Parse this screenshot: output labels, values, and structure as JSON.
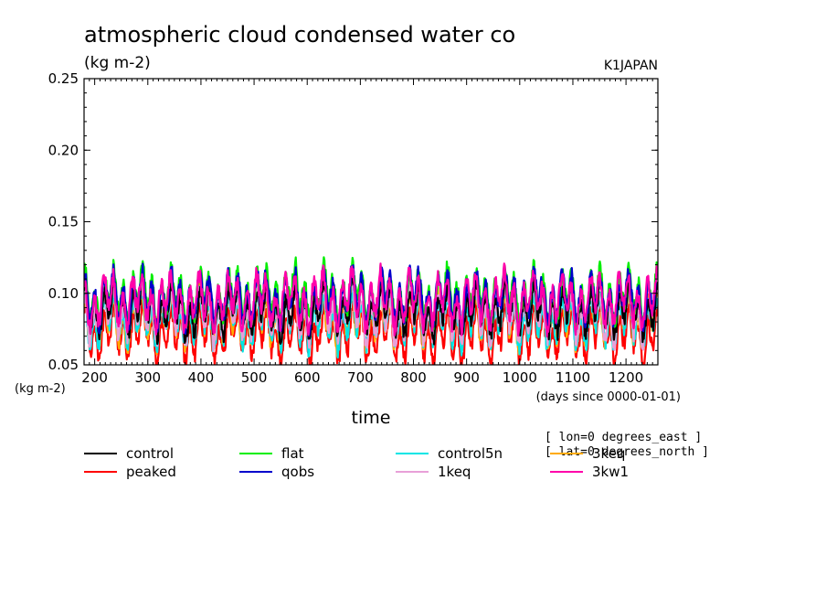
{
  "header": {
    "title": "atmospheric cloud condensed water co",
    "units": "(kg m-2)",
    "tag": "K1JAPAN"
  },
  "notes": [
    "[ lon=0 degrees_east ]",
    "[ lat=0 degrees_north ]"
  ],
  "chart_data": {
    "type": "line",
    "title": "atmospheric cloud condensed water co",
    "xlabel": "time",
    "x_units": "(days since 0000-01-01)",
    "ylabel": "(kg m-2)",
    "xlim": [
      180,
      1260
    ],
    "ylim": [
      0.05,
      0.25
    ],
    "xticks": [
      200,
      300,
      400,
      500,
      600,
      700,
      800,
      900,
      1000,
      1100,
      1200
    ],
    "xtick_labels": [
      "200",
      "300",
      "400",
      "500",
      "600",
      "700",
      "800",
      "900",
      "1000",
      "1100",
      "1200"
    ],
    "yticks": [
      0.05,
      0.1,
      0.15,
      0.2,
      0.25
    ],
    "ytick_labels": [
      "0.05",
      "0.10",
      "0.15",
      "0.20",
      "0.25"
    ],
    "grid": false,
    "legend_position": "bottom",
    "series": [
      {
        "name": "control",
        "color": "#000000",
        "x": [
          180,
          280,
          380,
          480,
          580,
          680,
          780,
          880,
          980,
          1080,
          1180,
          1260
        ],
        "y": [
          0.088,
          0.092,
          0.085,
          0.09,
          0.086,
          0.093,
          0.089,
          0.087,
          0.091,
          0.088,
          0.09,
          0.086
        ]
      },
      {
        "name": "peaked",
        "color": "#ff0000",
        "x": [
          180,
          280,
          380,
          480,
          580,
          680,
          780,
          880,
          980,
          1080,
          1180,
          1260
        ],
        "y": [
          0.072,
          0.074,
          0.07,
          0.073,
          0.069,
          0.072,
          0.071,
          0.07,
          0.073,
          0.07,
          0.072,
          0.071
        ]
      },
      {
        "name": "flat",
        "color": "#00ee00",
        "x": [
          180,
          280,
          380,
          480,
          580,
          680,
          780,
          880,
          980,
          1080,
          1180,
          1260
        ],
        "y": [
          0.098,
          0.1,
          0.097,
          0.099,
          0.101,
          0.1,
          0.098,
          0.099,
          0.1,
          0.097,
          0.099,
          0.1
        ]
      },
      {
        "name": "qobs",
        "color": "#0000cc",
        "x": [
          180,
          280,
          380,
          480,
          580,
          680,
          780,
          880,
          980,
          1080,
          1180,
          1260
        ],
        "y": [
          0.095,
          0.097,
          0.096,
          0.098,
          0.095,
          0.097,
          0.099,
          0.096,
          0.097,
          0.098,
          0.096,
          0.097
        ]
      },
      {
        "name": "control5n",
        "color": "#00e5e5",
        "x": [
          180,
          280,
          380,
          480,
          580,
          680,
          780,
          880,
          980,
          1080,
          1180,
          1260
        ],
        "y": [
          0.08,
          0.083,
          0.079,
          0.082,
          0.08,
          0.081,
          0.083,
          0.08,
          0.082,
          0.079,
          0.081,
          0.08
        ]
      },
      {
        "name": "1keq",
        "color": "#e8a0d8",
        "x": [
          180,
          280,
          380,
          480,
          580,
          680,
          780,
          880,
          980,
          1080,
          1180,
          1260
        ],
        "y": [
          0.084,
          0.086,
          0.083,
          0.085,
          0.084,
          0.086,
          0.083,
          0.085,
          0.084,
          0.086,
          0.083,
          0.085
        ]
      },
      {
        "name": "3keq",
        "color": "#ffaa00",
        "x": [
          180,
          280,
          380,
          480,
          580,
          680,
          780,
          880,
          980,
          1080,
          1180,
          1260
        ],
        "y": [
          0.082,
          0.08,
          0.083,
          0.081,
          0.082,
          0.08,
          0.083,
          0.081,
          0.082,
          0.08,
          0.083,
          0.081
        ]
      },
      {
        "name": "3kw1",
        "color": "#ff00aa",
        "x": [
          180,
          280,
          380,
          480,
          580,
          680,
          780,
          880,
          980,
          1080,
          1180,
          1260
        ],
        "y": [
          0.094,
          0.096,
          0.093,
          0.095,
          0.094,
          0.096,
          0.095,
          0.093,
          0.096,
          0.094,
          0.095,
          0.094
        ]
      }
    ]
  }
}
